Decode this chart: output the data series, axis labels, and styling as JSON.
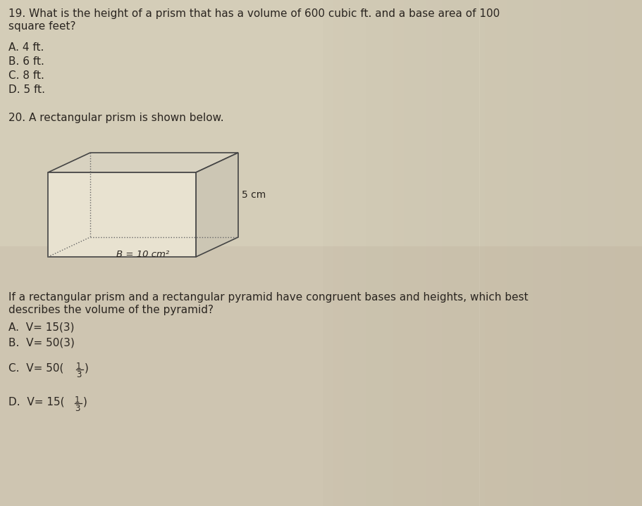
{
  "bg_color": "#d4cdb8",
  "bg_color_right": "#b8b5a8",
  "text_color": "#2a2520",
  "q19_text_line1": "19. What is the height of a prism that has a volume of 600 cubic ft. and a base area of 100",
  "q19_text_line2": "square feet?",
  "q19_choices": [
    "A. 4 ft.",
    "B. 6 ft.",
    "C. 8 ft.",
    "D. 5 ft."
  ],
  "q20_text": "20. A rectangular prism is shown below.",
  "q20_follow_line1": "If a rectangular prism and a rectangular pyramid have congruent bases and heights, which best",
  "q20_follow_line2": "describes the volume of the pyramid?",
  "q20_A": "A.  V= 15(3)",
  "q20_B": "B.  V= 50(3)",
  "q20_C_pre": "C.  V= 50(",
  "q20_D_pre": "D.  V= 15(",
  "prism_label_base": "B = 10 cm²",
  "prism_label_height": "5 cm",
  "face_front": "#e8e2d0",
  "face_top": "#d8d2c0",
  "face_right": "#ccc6b4",
  "edge_color": "#444444",
  "dash_color": "#666666"
}
